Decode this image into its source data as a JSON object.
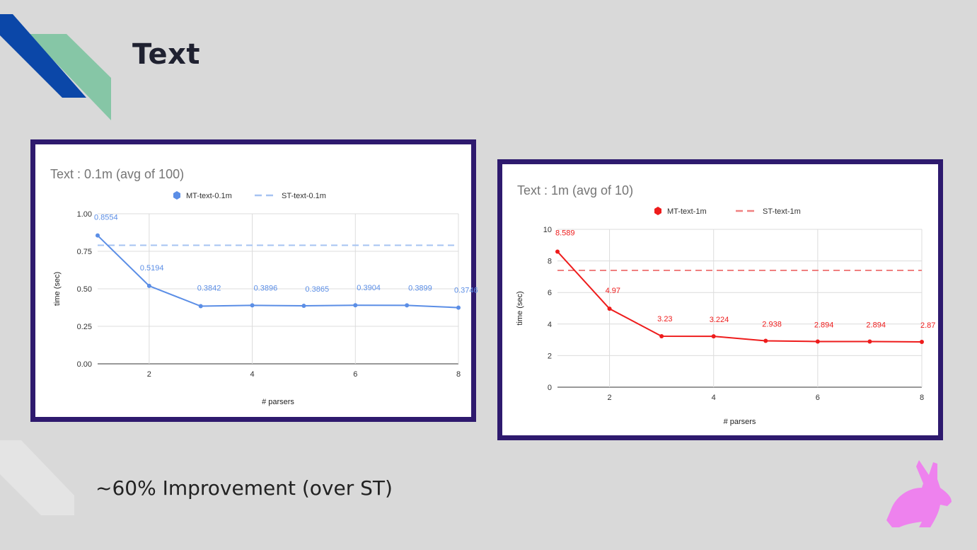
{
  "slide": {
    "title": "Text",
    "caption": "~60% Improvement (over ST)"
  },
  "colors": {
    "background": "#d9d9d9",
    "frame": "#2e1a6e",
    "accent_blue": "#0b47a8",
    "accent_green": "#86c6a6",
    "mascot": "#ee82ee"
  },
  "chart_data": [
    {
      "type": "line",
      "title": "Text : 0.1m (avg of 100)",
      "xlabel": "# parsers",
      "ylabel": "time (sec)",
      "x": [
        1,
        2,
        3,
        4,
        5,
        6,
        7,
        8
      ],
      "xticks": [
        "2",
        "4",
        "6",
        "8"
      ],
      "yticks": [
        "0.00",
        "0.25",
        "0.50",
        "0.75",
        "1.00"
      ],
      "ylim": [
        0,
        1
      ],
      "xlim": [
        1,
        8
      ],
      "grid": true,
      "legend_position": "top",
      "series": [
        {
          "name": "MT-text-0.1m",
          "style": "solid",
          "color": "#5b8ee6",
          "values": [
            0.8554,
            0.5194,
            0.3842,
            0.3896,
            0.3865,
            0.3904,
            0.3899,
            0.3746
          ],
          "labels": [
            "0.8554",
            "0.5194",
            "0.3842",
            "0.3896",
            "0.3865",
            "0.3904",
            "0.3899",
            "0.3746"
          ]
        },
        {
          "name": "ST-text-0.1m",
          "style": "dashed",
          "color": "#a6c3f2",
          "values": [
            0.79,
            0.79,
            0.79,
            0.79,
            0.79,
            0.79,
            0.79,
            0.79
          ]
        }
      ]
    },
    {
      "type": "line",
      "title": "Text : 1m (avg of 10)",
      "xlabel": "# parsers",
      "ylabel": "time (sec)",
      "x": [
        1,
        2,
        3,
        4,
        5,
        6,
        7,
        8
      ],
      "xticks": [
        "2",
        "4",
        "6",
        "8"
      ],
      "yticks": [
        "0",
        "2",
        "4",
        "6",
        "8",
        "10"
      ],
      "ylim": [
        0,
        10
      ],
      "xlim": [
        1,
        8
      ],
      "grid": true,
      "legend_position": "top",
      "series": [
        {
          "name": "MT-text-1m",
          "style": "solid",
          "color": "#ee1c1c",
          "values": [
            8.589,
            4.97,
            3.23,
            3.224,
            2.938,
            2.894,
            2.894,
            2.87
          ],
          "labels": [
            "8.589",
            "4.97",
            "3.23",
            "3.224",
            "2.938",
            "2.894",
            "2.894",
            "2.87"
          ]
        },
        {
          "name": "ST-text-1m",
          "style": "dashed",
          "color": "#f08080",
          "values": [
            7.4,
            7.4,
            7.4,
            7.4,
            7.4,
            7.4,
            7.4,
            7.4
          ]
        }
      ]
    }
  ]
}
